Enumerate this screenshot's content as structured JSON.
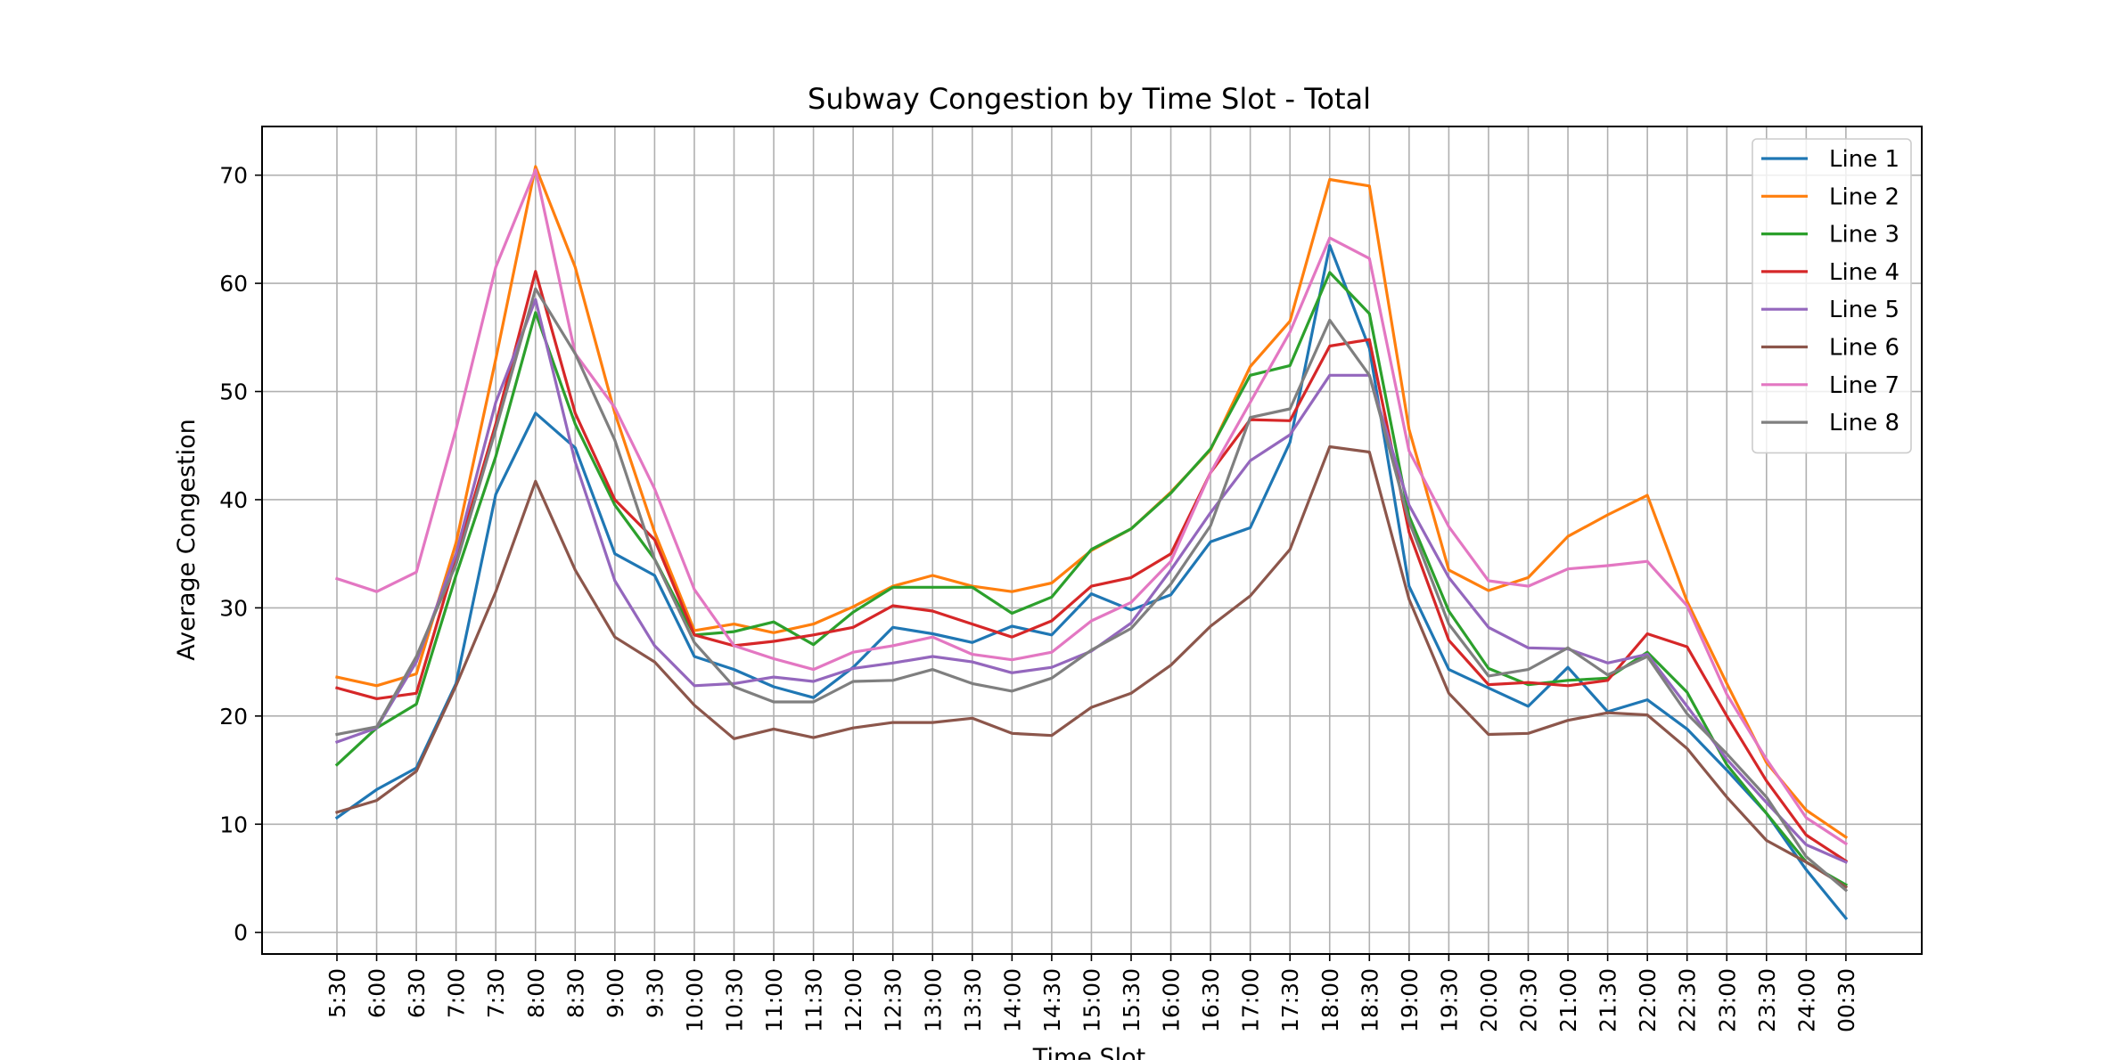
{
  "chart_data": {
    "type": "line",
    "title": "Subway Congestion by Time Slot - Total",
    "xlabel": "Time Slot",
    "ylabel": "Average Congestion",
    "ylim": [
      -2,
      74.5
    ],
    "yticks": [
      0,
      10,
      20,
      30,
      40,
      50,
      60,
      70
    ],
    "grid": true,
    "legend_position": "top-right",
    "categories": [
      "5:30",
      "6:00",
      "6:30",
      "7:00",
      "7:30",
      "8:00",
      "8:30",
      "9:00",
      "9:30",
      "10:00",
      "10:30",
      "11:00",
      "11:30",
      "12:00",
      "12:30",
      "13:00",
      "13:30",
      "14:00",
      "14:30",
      "15:00",
      "15:30",
      "16:00",
      "16:30",
      "17:00",
      "17:30",
      "18:00",
      "18:30",
      "19:00",
      "19:30",
      "20:00",
      "20:30",
      "21:00",
      "21:30",
      "22:00",
      "22:30",
      "23:00",
      "23:30",
      "24:00",
      "00:30"
    ],
    "series": [
      {
        "name": "Line 1",
        "color": "#1f77b4",
        "values": [
          10.6,
          13.2,
          15.2,
          23.0,
          40.5,
          48.0,
          44.8,
          35.0,
          33.0,
          25.5,
          24.3,
          22.7,
          21.7,
          24.5,
          28.2,
          27.6,
          26.8,
          28.3,
          27.5,
          31.3,
          29.8,
          31.2,
          36.1,
          37.4,
          45.3,
          63.5,
          54.0,
          32.0,
          24.3,
          22.6,
          20.9,
          24.5,
          20.4,
          21.5,
          18.8,
          15.0,
          11.0,
          5.8,
          1.3
        ]
      },
      {
        "name": "Line 2",
        "color": "#ff7f0e",
        "values": [
          23.6,
          22.8,
          23.9,
          36.0,
          53.0,
          70.8,
          61.5,
          48.0,
          37.0,
          27.9,
          28.5,
          27.7,
          28.5,
          30.1,
          32.0,
          33.0,
          32.0,
          31.5,
          32.3,
          35.3,
          37.3,
          40.7,
          44.6,
          52.3,
          56.5,
          69.6,
          69.0,
          46.5,
          33.5,
          31.6,
          32.8,
          36.6,
          38.6,
          40.4,
          30.6,
          23.0,
          15.7,
          11.3,
          8.8
        ]
      },
      {
        "name": "Line 3",
        "color": "#2ca02c",
        "values": [
          15.5,
          18.9,
          21.1,
          33.0,
          44.0,
          57.3,
          47.0,
          39.5,
          34.5,
          27.5,
          27.8,
          28.7,
          26.6,
          29.6,
          31.9,
          31.9,
          31.9,
          29.5,
          31.0,
          35.4,
          37.3,
          40.6,
          44.7,
          51.5,
          52.4,
          61.0,
          57.2,
          38.5,
          29.7,
          24.4,
          22.9,
          23.3,
          23.5,
          25.9,
          22.2,
          15.5,
          11.0,
          6.5,
          4.4
        ]
      },
      {
        "name": "Line 4",
        "color": "#d62728",
        "values": [
          22.6,
          21.6,
          22.1,
          34.5,
          47.0,
          61.1,
          48.0,
          40.0,
          36.3,
          27.5,
          26.5,
          26.9,
          27.5,
          28.2,
          30.2,
          29.7,
          28.5,
          27.3,
          28.8,
          32.0,
          32.8,
          35.0,
          42.5,
          47.4,
          47.3,
          54.2,
          54.8,
          37.0,
          27.0,
          22.9,
          23.1,
          22.8,
          23.3,
          27.6,
          26.4,
          20.0,
          14.0,
          9.0,
          6.6
        ]
      },
      {
        "name": "Line 5",
        "color": "#9467bd",
        "values": [
          17.6,
          18.9,
          25.0,
          35.0,
          49.0,
          58.5,
          43.5,
          32.5,
          26.5,
          22.8,
          23.0,
          23.6,
          23.2,
          24.4,
          24.9,
          25.5,
          25.0,
          24.0,
          24.5,
          26.0,
          28.6,
          33.5,
          38.8,
          43.6,
          46.0,
          51.5,
          51.5,
          39.5,
          32.8,
          28.2,
          26.3,
          26.2,
          24.9,
          25.7,
          20.9,
          16.0,
          12.0,
          8.1,
          6.5
        ]
      },
      {
        "name": "Line 6",
        "color": "#8c564b",
        "values": [
          11.1,
          12.2,
          14.9,
          22.8,
          31.5,
          41.7,
          33.5,
          27.3,
          25.0,
          21.0,
          17.9,
          18.8,
          18.0,
          18.9,
          19.4,
          19.4,
          19.8,
          18.4,
          18.2,
          20.8,
          22.1,
          24.7,
          28.3,
          31.1,
          35.4,
          44.9,
          44.4,
          30.8,
          22.1,
          18.3,
          18.4,
          19.6,
          20.3,
          20.1,
          17.0,
          12.5,
          8.5,
          6.5,
          4.2
        ]
      },
      {
        "name": "Line 7",
        "color": "#e377c2",
        "values": [
          32.7,
          31.5,
          33.3,
          46.5,
          61.5,
          70.5,
          53.5,
          48.5,
          41.0,
          31.7,
          26.5,
          25.3,
          24.3,
          25.9,
          26.5,
          27.3,
          25.7,
          25.2,
          25.9,
          28.8,
          30.5,
          34.3,
          42.5,
          49.0,
          55.5,
          64.2,
          62.3,
          44.5,
          37.5,
          32.5,
          32.0,
          33.6,
          33.9,
          34.3,
          30.2,
          22.0,
          16.0,
          10.6,
          8.2
        ]
      },
      {
        "name": "Line 8",
        "color": "#7f7f7f",
        "values": [
          18.3,
          19.0,
          25.5,
          34.0,
          46.5,
          59.5,
          53.5,
          45.5,
          34.5,
          26.8,
          22.7,
          21.3,
          21.3,
          23.2,
          23.3,
          24.3,
          23.0,
          22.3,
          23.5,
          26.1,
          28.1,
          32.2,
          37.6,
          47.6,
          48.4,
          56.6,
          51.5,
          38.0,
          28.5,
          23.7,
          24.3,
          26.3,
          23.8,
          25.5,
          20.2,
          16.5,
          12.5,
          7.0,
          3.9
        ]
      }
    ]
  }
}
